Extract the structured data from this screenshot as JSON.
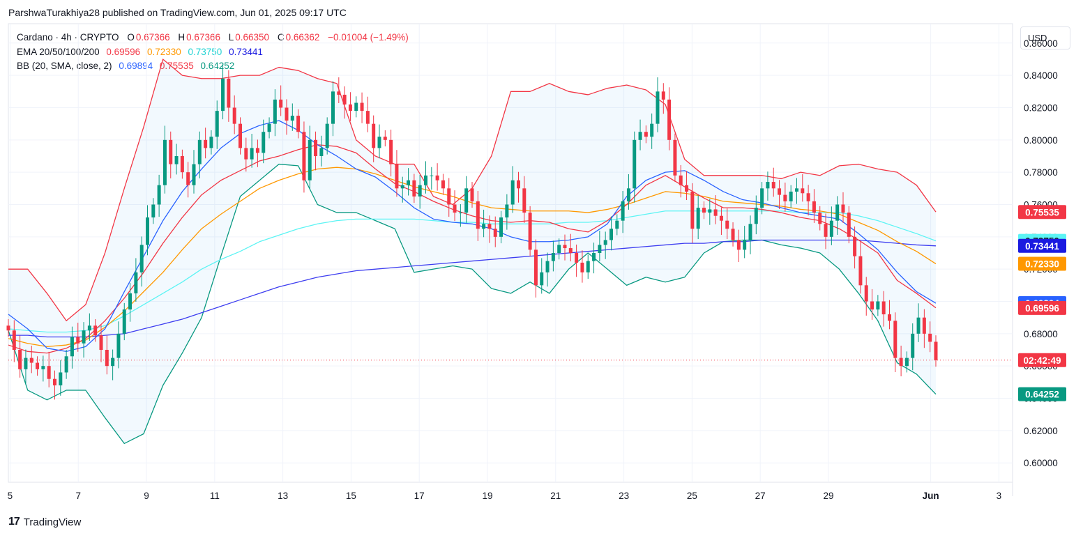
{
  "header": {
    "author_line": "ParshwaTurakhiya28 published on TradingView.com, Jun 01, 2025 09:17 UTC"
  },
  "legend": {
    "symbol": "Cardano · 4h · CRYPTO",
    "o_label": "O",
    "o": "0.67366",
    "h_label": "H",
    "h": "0.67366",
    "l_label": "L",
    "l": "0.66350",
    "c_label": "C",
    "c": "0.66362",
    "change": "−0.01004 (−1.49%)",
    "ema_label": "EMA 20/50/100/200",
    "ema20": "0.69596",
    "ema50": "0.72330",
    "ema100": "0.73750",
    "ema200": "0.73441",
    "bb_label": "BB (20, SMA, close, 2)",
    "bb_basis": "0.69894",
    "bb_upper": "0.75535",
    "bb_lower": "0.64252"
  },
  "currency_button": "USD",
  "footer": {
    "logo": "17",
    "brand": "TradingView"
  },
  "colors": {
    "up": "#089981",
    "down": "#f23645",
    "ema20": "#f23645",
    "ema50": "#ff9800",
    "ema100": "#5cf4f4",
    "ema200": "#2962ff",
    "bb_basis": "#2962ff",
    "bb_upper": "#f23645",
    "bb_lower": "#089981",
    "bb_fill": "#2196f3",
    "countdown": "#f23645",
    "ema200_tag": "#1a1ae0"
  },
  "chart_data": {
    "type": "line",
    "title": "",
    "y_range": [
      0.588,
      0.872
    ],
    "y_ticks": [
      "0.60000",
      "0.62000",
      "0.64000",
      "0.66000",
      "0.68000",
      "0.70000",
      "0.72000",
      "0.74000",
      "0.76000",
      "0.78000",
      "0.80000",
      "0.82000",
      "0.84000",
      "0.86000"
    ],
    "x_range_days": [
      4.95,
      34.4
    ],
    "x_ticks": [
      {
        "d": 5,
        "label": "5"
      },
      {
        "d": 7,
        "label": "7"
      },
      {
        "d": 9,
        "label": "9"
      },
      {
        "d": 11,
        "label": "11"
      },
      {
        "d": 13,
        "label": "13"
      },
      {
        "d": 15,
        "label": "15"
      },
      {
        "d": 17,
        "label": "17"
      },
      {
        "d": 19,
        "label": "19"
      },
      {
        "d": 21,
        "label": "21"
      },
      {
        "d": 23,
        "label": "23"
      },
      {
        "d": 25,
        "label": "25"
      },
      {
        "d": 27,
        "label": "27"
      },
      {
        "d": 29,
        "label": "29"
      },
      {
        "d": 32,
        "label": "Jun"
      },
      {
        "d": 34,
        "label": "3"
      }
    ],
    "last_price": 0.66362,
    "countdown": "02:42:49",
    "price_tags": [
      {
        "value": 0.75535,
        "label": "0.75535",
        "color": "bb_upper"
      },
      {
        "value": 0.7375,
        "label": "0.73750",
        "color": "ema100",
        "dark_text": true
      },
      {
        "value": 0.73441,
        "label": "0.73441",
        "color": "ema200_tag"
      },
      {
        "value": 0.7233,
        "label": "0.72330",
        "color": "ema50"
      },
      {
        "value": 0.69894,
        "label": "0.69894",
        "color": "bb_basis"
      },
      {
        "value": 0.69596,
        "label": "0.69596",
        "color": "ema20"
      },
      {
        "value": 0.64252,
        "label": "0.64252",
        "color": "bb_lower"
      }
    ],
    "closes": [
      0.682,
      0.67,
      0.658,
      0.665,
      0.662,
      0.658,
      0.66,
      0.652,
      0.648,
      0.656,
      0.666,
      0.678,
      0.674,
      0.682,
      0.685,
      0.679,
      0.67,
      0.66,
      0.665,
      0.68,
      0.695,
      0.705,
      0.718,
      0.735,
      0.752,
      0.76,
      0.772,
      0.8,
      0.785,
      0.79,
      0.78,
      0.772,
      0.785,
      0.8,
      0.795,
      0.802,
      0.818,
      0.838,
      0.82,
      0.81,
      0.795,
      0.788,
      0.795,
      0.792,
      0.805,
      0.81,
      0.825,
      0.82,
      0.812,
      0.815,
      0.805,
      0.775,
      0.8,
      0.79,
      0.795,
      0.81,
      0.83,
      0.828,
      0.822,
      0.818,
      0.823,
      0.818,
      0.81,
      0.795,
      0.802,
      0.8,
      0.785,
      0.77,
      0.772,
      0.775,
      0.765,
      0.772,
      0.778,
      0.778,
      0.775,
      0.77,
      0.76,
      0.755,
      0.755,
      0.77,
      0.762,
      0.745,
      0.748,
      0.745,
      0.74,
      0.752,
      0.76,
      0.775,
      0.77,
      0.755,
      0.732,
      0.71,
      0.718,
      0.725,
      0.73,
      0.735,
      0.733,
      0.73,
      0.724,
      0.718,
      0.725,
      0.73,
      0.735,
      0.738,
      0.745,
      0.75,
      0.762,
      0.77,
      0.8,
      0.805,
      0.802,
      0.81,
      0.83,
      0.825,
      0.8,
      0.778,
      0.772,
      0.768,
      0.745,
      0.758,
      0.755,
      0.757,
      0.753,
      0.75,
      0.745,
      0.738,
      0.732,
      0.738,
      0.748,
      0.758,
      0.77,
      0.774,
      0.77,
      0.766,
      0.762,
      0.768,
      0.77,
      0.767,
      0.762,
      0.755,
      0.748,
      0.74,
      0.75,
      0.76,
      0.755,
      0.74,
      0.728,
      0.71,
      0.7,
      0.695,
      0.7,
      0.692,
      0.688,
      0.665,
      0.66,
      0.665,
      0.68,
      0.69,
      0.68,
      0.675,
      0.6636
    ],
    "ema20": [
      0.673,
      0.669,
      0.668,
      0.671,
      0.677,
      0.688,
      0.702,
      0.718,
      0.736,
      0.752,
      0.766,
      0.775,
      0.781,
      0.787,
      0.79,
      0.794,
      0.797,
      0.796,
      0.792,
      0.782,
      0.773,
      0.768,
      0.762,
      0.757,
      0.753,
      0.75,
      0.749,
      0.75,
      0.749,
      0.745,
      0.743,
      0.75,
      0.76,
      0.772,
      0.778,
      0.771,
      0.764,
      0.758,
      0.758,
      0.757,
      0.755,
      0.752,
      0.75,
      0.745,
      0.738,
      0.73,
      0.713,
      0.705,
      0.696
    ],
    "ema50": [
      0.677,
      0.674,
      0.672,
      0.673,
      0.676,
      0.684,
      0.694,
      0.706,
      0.718,
      0.732,
      0.745,
      0.754,
      0.762,
      0.77,
      0.775,
      0.779,
      0.782,
      0.783,
      0.782,
      0.779,
      0.775,
      0.771,
      0.768,
      0.765,
      0.761,
      0.758,
      0.757,
      0.756,
      0.756,
      0.756,
      0.755,
      0.757,
      0.76,
      0.764,
      0.768,
      0.767,
      0.765,
      0.762,
      0.761,
      0.76,
      0.759,
      0.757,
      0.756,
      0.754,
      0.749,
      0.744,
      0.737,
      0.731,
      0.7233
    ],
    "ema100": [
      0.683,
      0.682,
      0.681,
      0.681,
      0.682,
      0.685,
      0.691,
      0.698,
      0.705,
      0.712,
      0.72,
      0.726,
      0.731,
      0.737,
      0.741,
      0.745,
      0.748,
      0.75,
      0.751,
      0.751,
      0.751,
      0.751,
      0.75,
      0.749,
      0.749,
      0.748,
      0.748,
      0.748,
      0.748,
      0.749,
      0.749,
      0.75,
      0.752,
      0.754,
      0.756,
      0.756,
      0.756,
      0.756,
      0.756,
      0.756,
      0.756,
      0.755,
      0.755,
      0.755,
      0.753,
      0.75,
      0.746,
      0.742,
      0.7375
    ],
    "ema200": [
      0.679,
      0.679,
      0.678,
      0.678,
      0.678,
      0.679,
      0.68,
      0.683,
      0.686,
      0.689,
      0.693,
      0.697,
      0.701,
      0.705,
      0.709,
      0.712,
      0.715,
      0.717,
      0.719,
      0.72,
      0.721,
      0.722,
      0.723,
      0.724,
      0.725,
      0.726,
      0.727,
      0.728,
      0.729,
      0.73,
      0.731,
      0.732,
      0.733,
      0.734,
      0.735,
      0.736,
      0.736,
      0.737,
      0.737,
      0.738,
      0.738,
      0.738,
      0.738,
      0.738,
      0.738,
      0.737,
      0.736,
      0.735,
      0.7344
    ],
    "bb_basis": [
      0.692,
      0.683,
      0.671,
      0.669,
      0.672,
      0.683,
      0.706,
      0.728,
      0.75,
      0.768,
      0.782,
      0.795,
      0.804,
      0.809,
      0.812,
      0.806,
      0.797,
      0.79,
      0.782,
      0.777,
      0.768,
      0.758,
      0.751,
      0.749,
      0.748,
      0.745,
      0.74,
      0.737,
      0.737,
      0.738,
      0.74,
      0.748,
      0.765,
      0.775,
      0.78,
      0.781,
      0.775,
      0.768,
      0.763,
      0.761,
      0.758,
      0.755,
      0.753,
      0.751,
      0.742,
      0.732,
      0.718,
      0.706,
      0.6989
    ],
    "bb_upper": [
      0.72,
      0.72,
      0.705,
      0.688,
      0.698,
      0.73,
      0.77,
      0.808,
      0.85,
      0.84,
      0.838,
      0.838,
      0.84,
      0.84,
      0.845,
      0.843,
      0.838,
      0.835,
      0.8,
      0.79,
      0.785,
      0.785,
      0.765,
      0.76,
      0.77,
      0.79,
      0.83,
      0.83,
      0.835,
      0.83,
      0.828,
      0.832,
      0.834,
      0.831,
      0.822,
      0.788,
      0.778,
      0.778,
      0.778,
      0.778,
      0.776,
      0.78,
      0.778,
      0.784,
      0.785,
      0.782,
      0.78,
      0.772,
      0.7554
    ],
    "bb_lower": [
      0.682,
      0.645,
      0.639,
      0.645,
      0.645,
      0.628,
      0.612,
      0.618,
      0.648,
      0.668,
      0.69,
      0.728,
      0.765,
      0.775,
      0.785,
      0.784,
      0.76,
      0.755,
      0.755,
      0.75,
      0.745,
      0.718,
      0.72,
      0.722,
      0.72,
      0.708,
      0.705,
      0.712,
      0.705,
      0.72,
      0.73,
      0.72,
      0.71,
      0.715,
      0.712,
      0.715,
      0.73,
      0.737,
      0.738,
      0.738,
      0.735,
      0.733,
      0.73,
      0.72,
      0.705,
      0.688,
      0.662,
      0.655,
      0.6425
    ]
  }
}
